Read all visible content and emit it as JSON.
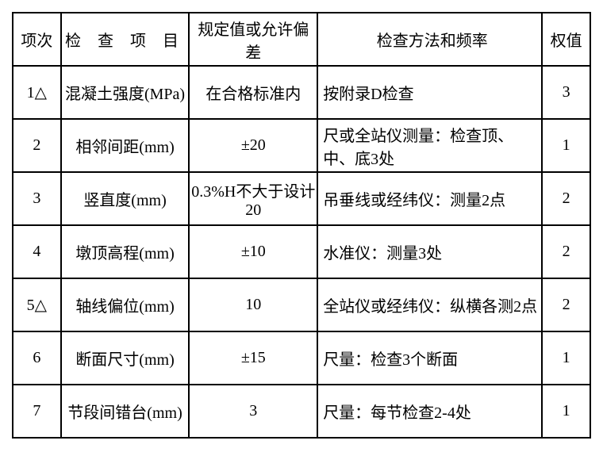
{
  "table": {
    "headers": {
      "index": "项次",
      "item": "检 查 项 目",
      "spec": "规定值或允许偏差",
      "method": "检查方法和频率",
      "weight": "权值"
    },
    "rows": [
      {
        "index": "1△",
        "item": "混凝土强度(MPa)",
        "spec": "在合格标准内",
        "method": "按附录D检查",
        "weight": "3"
      },
      {
        "index": "2",
        "item": "相邻间距(mm)",
        "spec": "±20",
        "method": "尺或全站仪测量：检查顶、中、底3处",
        "weight": "1"
      },
      {
        "index": "3",
        "item": "竖直度(mm)",
        "spec": "0.3%H不大于设计20",
        "method": "吊垂线或经纬仪：测量2点",
        "weight": "2"
      },
      {
        "index": "4",
        "item": "墩顶高程(mm)",
        "spec": "±10",
        "method": "水准仪：测量3处",
        "weight": "2"
      },
      {
        "index": "5△",
        "item": "轴线偏位(mm)",
        "spec": "10",
        "method": "全站仪或经纬仪：纵横各测2点",
        "weight": "2"
      },
      {
        "index": "6",
        "item": "断面尺寸(mm)",
        "spec": "±15",
        "method": "尺量：检查3个断面",
        "weight": "1"
      },
      {
        "index": "7",
        "item": "节段间错台(mm)",
        "spec": "3",
        "method": "尺量：每节检查2-4处",
        "weight": "1"
      }
    ]
  }
}
